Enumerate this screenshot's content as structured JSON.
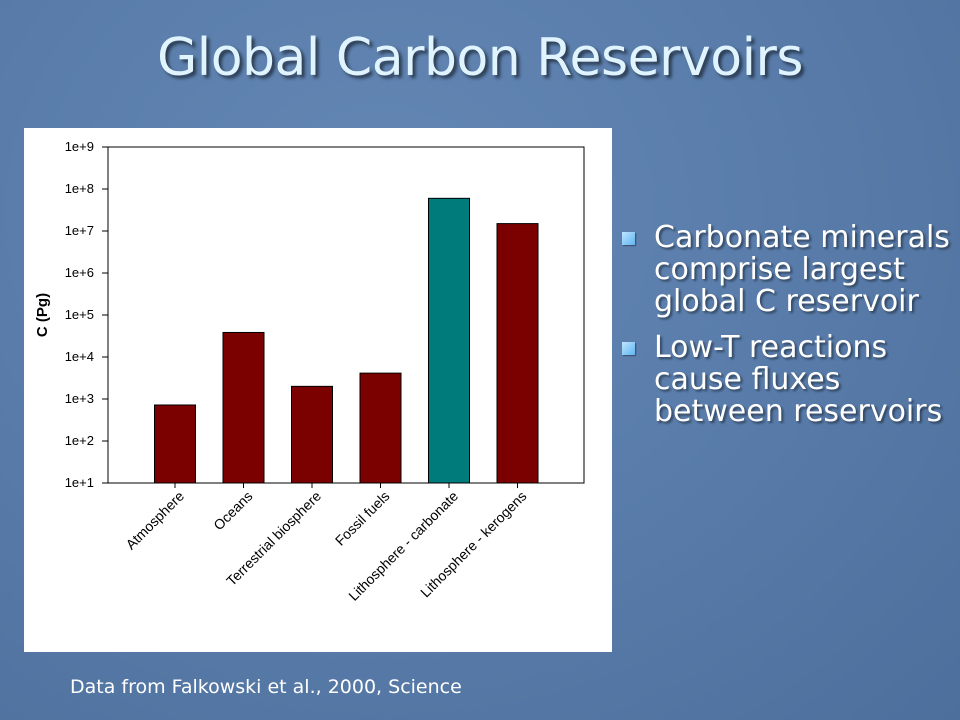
{
  "slide": {
    "title": "Global Carbon Reservoirs",
    "caption": "Data from Falkowski et al., 2000, Science",
    "bullets": [
      "Carbonate minerals comprise largest global C reservoir",
      "Low-T reactions cause fluxes between reservoirs"
    ]
  },
  "colors": {
    "background": "#5a7dab",
    "title": "#dff4ff",
    "bar_default": "#7b0000",
    "bar_highlight": "#007b7b"
  },
  "chart_data": {
    "type": "bar",
    "title": "",
    "xlabel": "",
    "ylabel": "C (Pg)",
    "yscale": "log",
    "ylim": [
      10,
      1000000000
    ],
    "ytick_labels": [
      "1e+1",
      "1e+2",
      "1e+3",
      "1e+4",
      "1e+5",
      "1e+6",
      "1e+7",
      "1e+8",
      "1e+9"
    ],
    "categories": [
      "Atmosphere",
      "Oceans",
      "Terrestrial biosphere",
      "Fossil fuels",
      "Lithosphere - carbonate",
      "Lithosphere - kerogens"
    ],
    "values": [
      720,
      38400,
      2000,
      4130,
      60000000,
      15000000
    ],
    "highlight_index": 4,
    "grid": false,
    "legend": "none"
  }
}
